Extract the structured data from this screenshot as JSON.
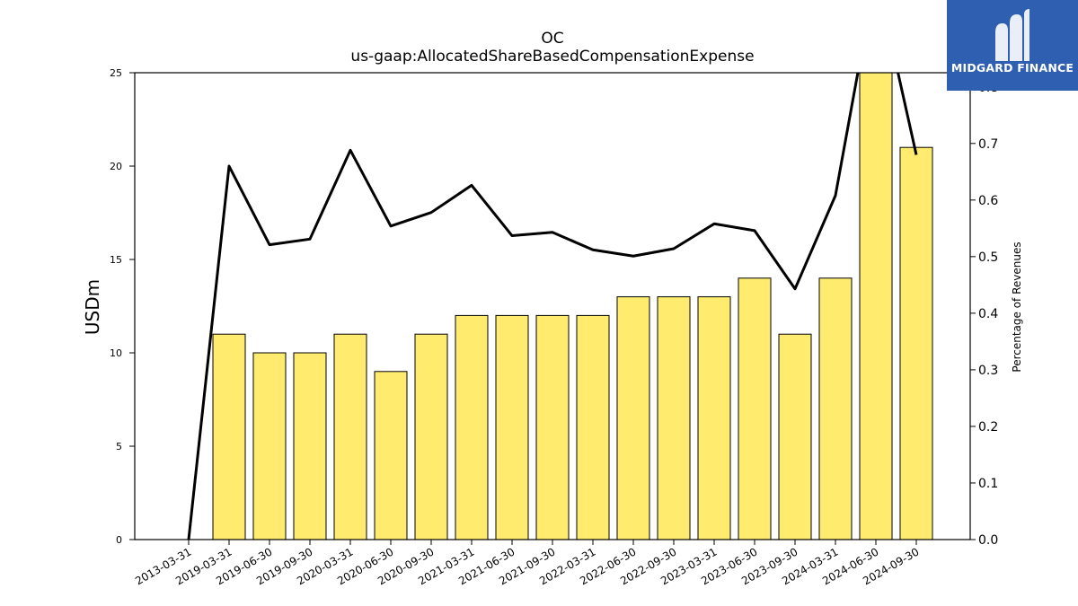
{
  "title": "OC",
  "subtitle": "us-gaap:AllocatedShareBasedCompensationExpense",
  "logo": {
    "text": "MIDGARD FINANCE",
    "bg_color": "#2f5fb0"
  },
  "chart_data": {
    "type": "bar",
    "categories": [
      "2013-03-31",
      "2019-03-31",
      "2019-06-30",
      "2019-09-30",
      "2020-03-31",
      "2020-06-30",
      "2020-09-30",
      "2021-03-31",
      "2021-06-30",
      "2021-09-30",
      "2022-03-31",
      "2022-06-30",
      "2022-09-30",
      "2023-03-31",
      "2023-06-30",
      "2023-09-30",
      "2024-03-31",
      "2024-06-30",
      "2024-09-30"
    ],
    "ylabel": "USDm",
    "y2label": "Percentage of Revenues",
    "ylim": [
      0,
      25
    ],
    "y2lim": [
      0,
      0.825
    ],
    "yticks": [
      "0",
      "5",
      "10",
      "15",
      "20",
      "25"
    ],
    "y2ticks": [
      "0.0",
      "0.1",
      "0.2",
      "0.3",
      "0.4",
      "0.5",
      "0.6",
      "0.7",
      "0.8"
    ],
    "series": [
      {
        "type": "bar",
        "axis": "left",
        "color": "#ffec6e",
        "values": [
          0,
          11,
          10,
          10,
          11,
          9,
          11,
          12,
          12,
          12,
          12,
          13,
          13,
          13,
          14,
          11,
          14,
          26,
          21
        ]
      },
      {
        "type": "line",
        "axis": "right",
        "color": "#000000",
        "values": [
          0.0,
          0.66,
          0.521,
          0.531,
          0.688,
          0.554,
          0.578,
          0.626,
          0.537,
          0.543,
          0.512,
          0.501,
          0.514,
          0.558,
          0.546,
          0.443,
          0.608,
          1.0,
          0.68
        ]
      }
    ],
    "grid": false,
    "legend": "none"
  }
}
